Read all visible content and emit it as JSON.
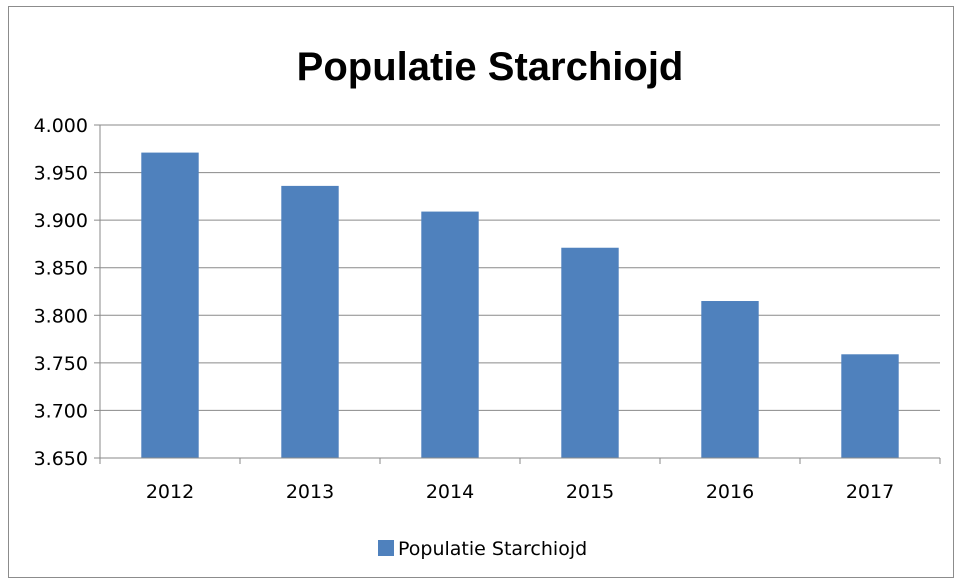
{
  "chart_data": {
    "type": "bar",
    "title": "Populatie Starchiojd",
    "categories": [
      "2012",
      "2013",
      "2014",
      "2015",
      "2016",
      "2017"
    ],
    "series": [
      {
        "name": "Populatie Starchiojd",
        "values": [
          3971,
          3936,
          3909,
          3871,
          3815,
          3759
        ],
        "color": "#4f81bd"
      }
    ],
    "ylim": [
      3650,
      4000
    ],
    "yticks": [
      3650,
      3700,
      3750,
      3800,
      3850,
      3900,
      3950,
      4000
    ],
    "ytick_labels": [
      "3.650",
      "3.700",
      "3.750",
      "3.800",
      "3.850",
      "3.900",
      "3.950",
      "4.000"
    ],
    "grid": true,
    "legend_position": "bottom"
  }
}
